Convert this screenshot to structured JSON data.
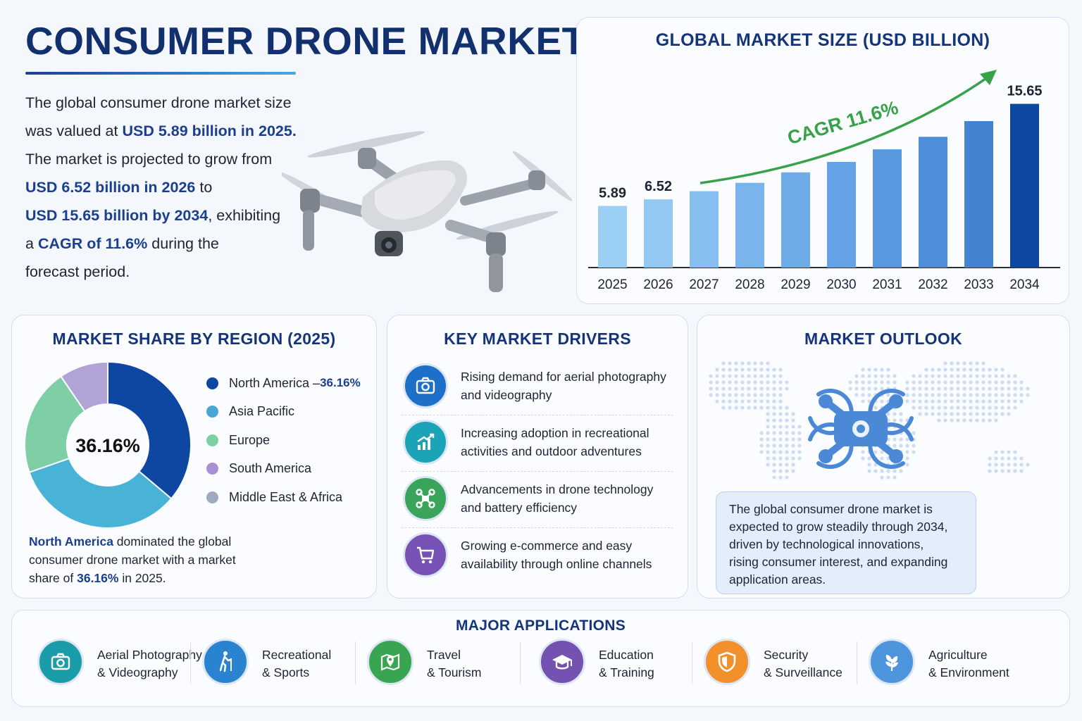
{
  "header": {
    "title": "CONSUMER DRONE MARKET",
    "intro": [
      [
        {
          "t": "The global consumer drone market size",
          "b": false
        }
      ],
      [
        {
          "t": "was valued at ",
          "b": false
        },
        {
          "t": "USD 5.89 billion in 2025.",
          "b": true
        }
      ],
      [
        {
          "t": "The market is projected to grow from",
          "b": false
        }
      ],
      [
        {
          "t": "USD 6.52 billion in 2026",
          "b": true
        },
        {
          "t": " to",
          "b": false
        }
      ],
      [
        {
          "t": "USD 15.65 billion by 2034",
          "b": true
        },
        {
          "t": ", exhibiting",
          "b": false
        }
      ],
      [
        {
          "t": "a ",
          "b": false
        },
        {
          "t": "CAGR of 11.6%",
          "b": true
        },
        {
          "t": " during the",
          "b": false
        }
      ],
      [
        {
          "t": "forecast period.",
          "b": false
        }
      ]
    ]
  },
  "bar_panel": {
    "cagr_label": "CAGR 11.6%",
    "colors": [
      "#9ccff4",
      "#92c8f2",
      "#86bff0",
      "#79b5ec",
      "#6eace8",
      "#63a2e4",
      "#5898de",
      "#4e8dd7",
      "#4383cf",
      "#0d47a1"
    ]
  },
  "chart_data": [
    {
      "type": "bar",
      "title": "GLOBAL MARKET SIZE (USD BILLION)",
      "categories": [
        "2025",
        "2026",
        "2027",
        "2028",
        "2029",
        "2030",
        "2031",
        "2032",
        "2033",
        "2034"
      ],
      "values": [
        5.89,
        6.52,
        7.3,
        8.1,
        9.1,
        10.1,
        11.3,
        12.5,
        14.0,
        15.65
      ],
      "data_labels": {
        "2025": "5.89",
        "2026": "6.52",
        "2034": "15.65"
      },
      "ylim": [
        0,
        17.5
      ],
      "grid": false
    },
    {
      "type": "pie",
      "title": "MARKET SHARE BY REGION (2025)",
      "center_label": "36.16%",
      "labels": [
        "North America",
        "Asia Pacific",
        "Europe",
        "South America",
        "Middle East & Africa"
      ],
      "values": [
        36.16,
        33.5,
        20.8,
        9.54,
        0
      ],
      "colors": [
        "#0d47a1",
        "#48b3d6",
        "#7fcfa6",
        "#b2a3d6",
        "#a0aabd"
      ],
      "legend": "right"
    }
  ],
  "region": {
    "legend": [
      {
        "label": "North America",
        "suffix": " – ",
        "value": "36.16%",
        "color": "#0d47a1"
      },
      {
        "label": "Asia Pacific",
        "suffix": "",
        "value": "",
        "color": "#48a5d6"
      },
      {
        "label": "Europe",
        "suffix": "",
        "value": "",
        "color": "#7fcfa6"
      },
      {
        "label": "South America",
        "suffix": "",
        "value": "",
        "color": "#a890d2"
      },
      {
        "label": "Middle East & Africa",
        "suffix": "",
        "value": "",
        "color": "#a0aabd"
      }
    ],
    "note": [
      [
        {
          "t": "North America",
          "b": true
        },
        {
          "t": " dominated the global",
          "b": false
        }
      ],
      [
        {
          "t": "consumer drone market with a market",
          "b": false
        }
      ],
      [
        {
          "t": "share of ",
          "b": false
        },
        {
          "t": "36.16%",
          "b": true
        },
        {
          "t": " in 2025.",
          "b": false
        }
      ]
    ]
  },
  "drivers": {
    "title": "KEY MARKET DRIVERS",
    "items": [
      {
        "icon": "camera-icon",
        "color": "#1e6fc7",
        "line1": "Rising demand for aerial photography",
        "line2": "and videography"
      },
      {
        "icon": "growth-chart-icon",
        "color": "#1ba3b8",
        "line1": "Increasing adoption in recreational",
        "line2": "activities and outdoor adventures"
      },
      {
        "icon": "drone-icon",
        "color": "#3aa45b",
        "line1": "Advancements in drone technology",
        "line2": "and battery efficiency"
      },
      {
        "icon": "cart-icon",
        "color": "#7552b4",
        "line1": "Growing e-commerce and easy",
        "line2": "availability through online channels"
      }
    ]
  },
  "outlook": {
    "title": "MARKET OUTLOOK",
    "lines": [
      "The global consumer drone market is",
      "expected to grow steadily through 2034,",
      "driven by technological innovations,",
      "rising consumer interest, and expanding",
      "application areas."
    ]
  },
  "applications": {
    "title": "MAJOR APPLICATIONS",
    "items": [
      {
        "icon": "camera-icon",
        "color": "#1a9da8",
        "line1": "Aerial Photography",
        "line2": "& Videography"
      },
      {
        "icon": "hiker-icon",
        "color": "#2a83d1",
        "line1": "Recreational",
        "line2": "& Sports"
      },
      {
        "icon": "map-pin-icon",
        "color": "#3aa551",
        "line1": "Travel",
        "line2": "& Tourism"
      },
      {
        "icon": "graduation-cap-icon",
        "color": "#7452b1",
        "line1": "Education",
        "line2": "& Training"
      },
      {
        "icon": "shield-icon",
        "color": "#f2902b",
        "line1": "Security",
        "line2": "& Surveillance"
      },
      {
        "icon": "leaf-icon",
        "color": "#4d95dc",
        "line1": "Agriculture",
        "line2": "& Environment"
      }
    ]
  }
}
